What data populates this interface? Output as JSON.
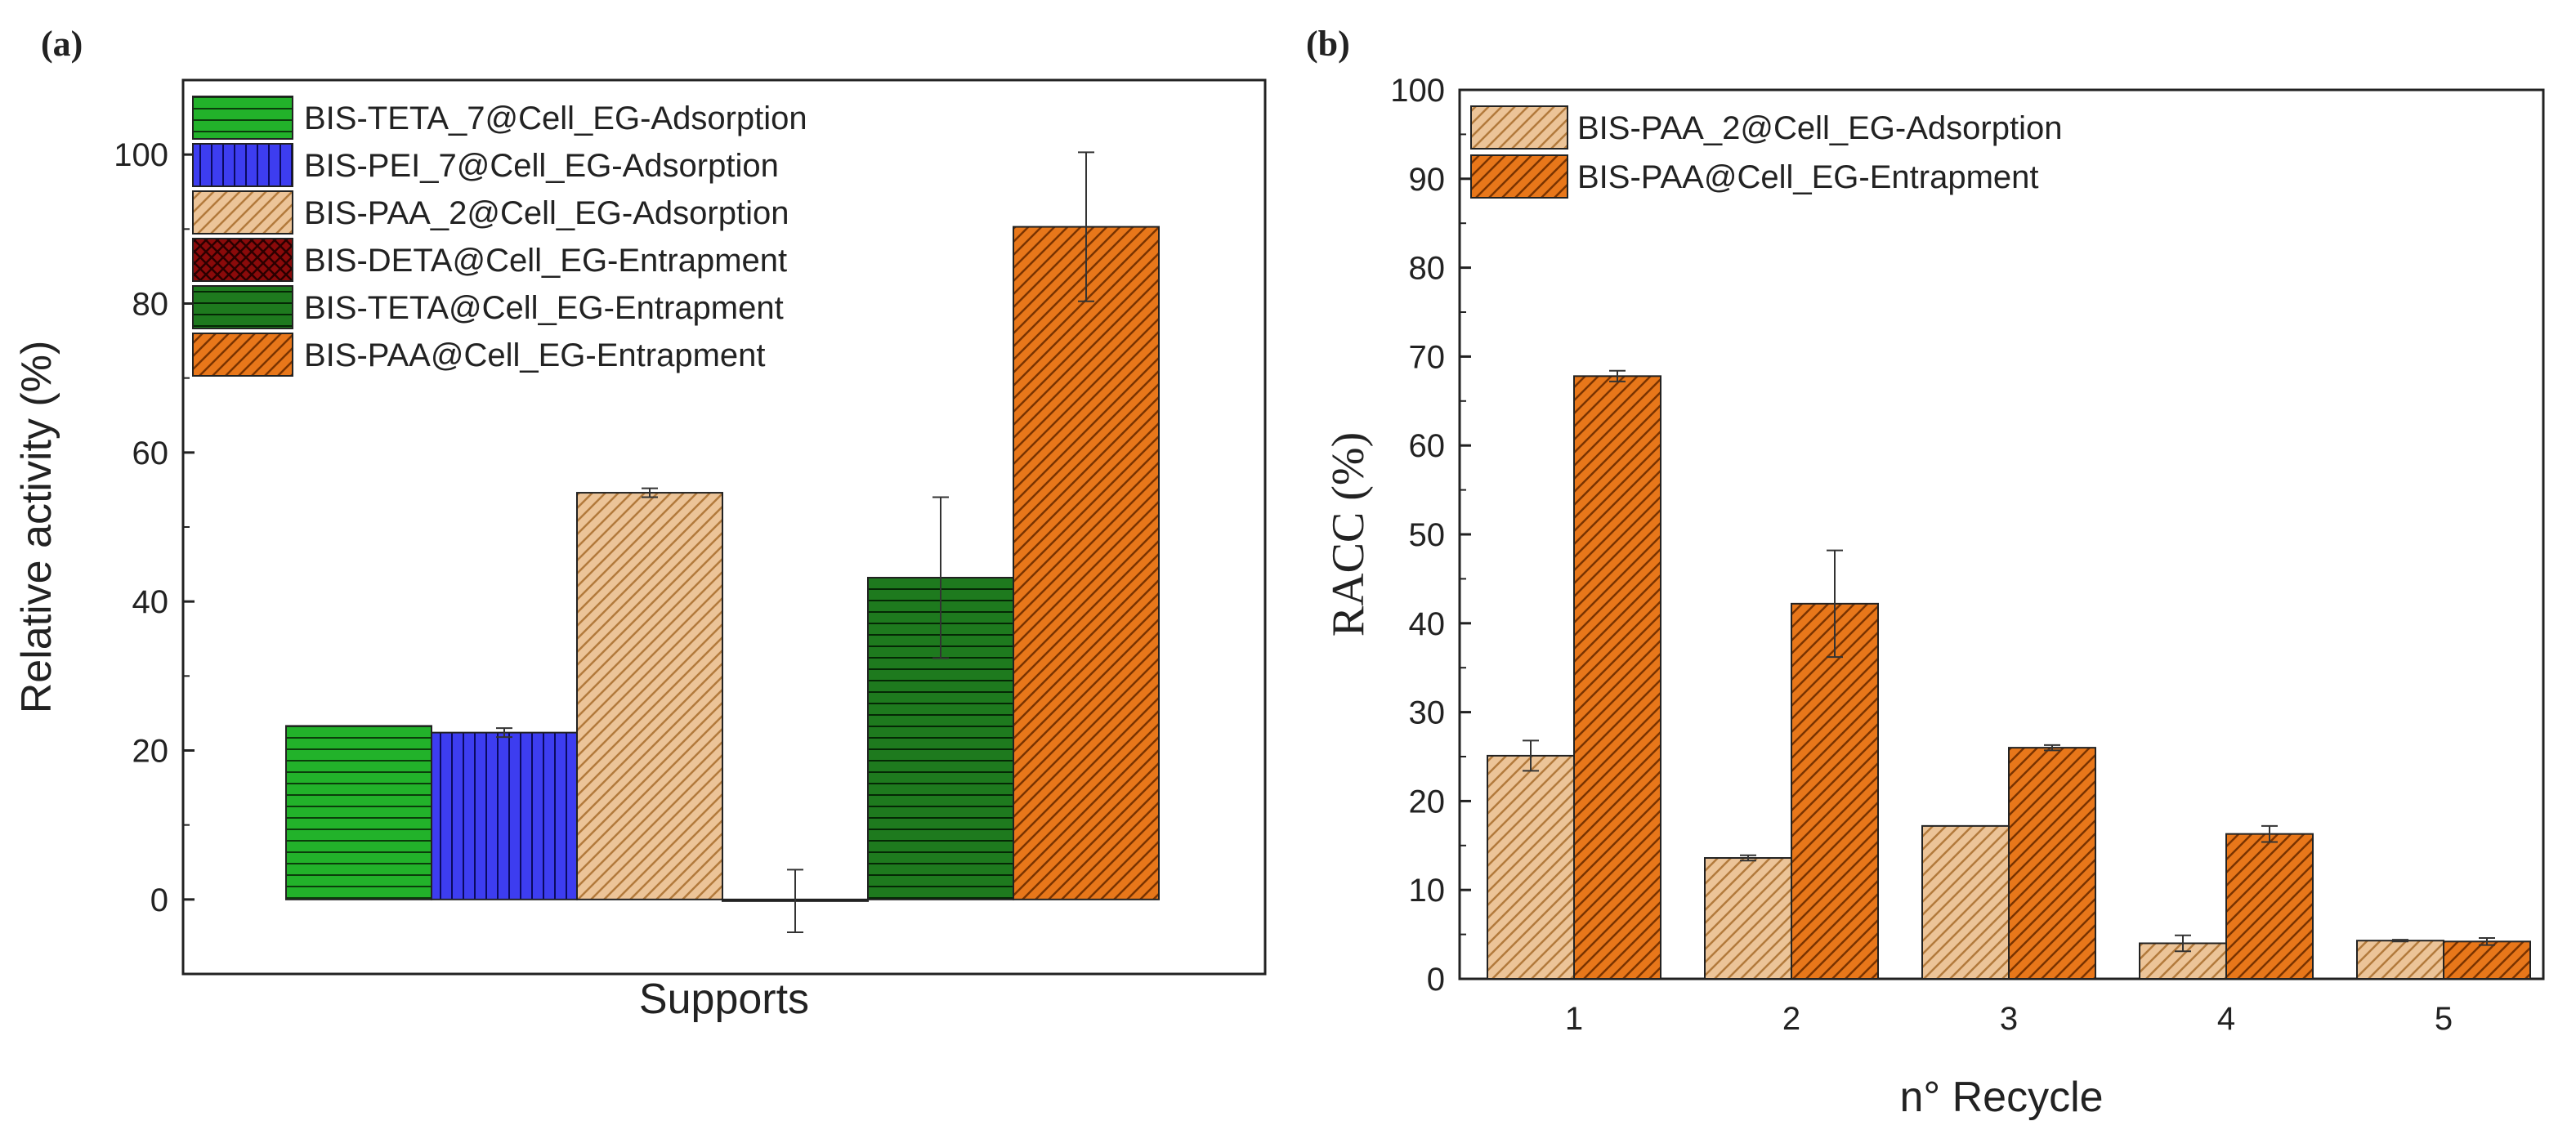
{
  "panels": {
    "a": {
      "label": "(a)"
    },
    "b": {
      "label": "(b)"
    }
  },
  "chart_data": [
    {
      "type": "bar",
      "panel": "(a)",
      "title": "",
      "xlabel": "Supports",
      "ylabel": "Relative activity (%)",
      "ylim": [
        -10,
        110
      ],
      "yticks": [
        0,
        20,
        40,
        60,
        80,
        100
      ],
      "ytick_labels": [
        "0",
        "20",
        "40",
        "60",
        "80",
        "100"
      ],
      "grid": false,
      "legend_position": "top-left",
      "series": [
        {
          "name": "BIS-TETA_7@Cell_EG-Adsorption",
          "value": 23.3,
          "error": 0,
          "color": "#22b22a",
          "pattern": "horizontal-lines"
        },
        {
          "name": "BIS-PEI_7@Cell_EG-Adsorption",
          "value": 22.4,
          "error": 0.6,
          "color": "#3d3df0",
          "pattern": "vertical-lines"
        },
        {
          "name": "BIS-PAA_2@Cell_EG-Adsorption",
          "value": 54.6,
          "error": 0.6,
          "color": "#e6b98a",
          "pattern": "diagonal-lines"
        },
        {
          "name": "BIS-DETA@Cell_EG-Entrapment",
          "value": -0.2,
          "error": 4.2,
          "color": "#8b0a0a",
          "pattern": "crosshatch"
        },
        {
          "name": "BIS-TETA@Cell_EG-Entrapment",
          "value": 43.2,
          "error": 10.8,
          "color": "#1e7a1e",
          "pattern": "horizontal-lines"
        },
        {
          "name": "BIS-PAA@Cell_EG-Entrapment",
          "value": 90.3,
          "error": 10.0,
          "color": "#e8771a",
          "pattern": "diagonal-lines"
        }
      ]
    },
    {
      "type": "bar",
      "panel": "(b)",
      "title": "",
      "xlabel": "n° Recycle",
      "ylabel": "RACC (%)",
      "ylim": [
        0,
        100
      ],
      "yticks": [
        0,
        10,
        20,
        30,
        40,
        50,
        60,
        70,
        80,
        90,
        100
      ],
      "ytick_labels": [
        "0",
        "10",
        "20",
        "30",
        "40",
        "50",
        "60",
        "70",
        "80",
        "90",
        "100"
      ],
      "categories": [
        "1",
        "2",
        "3",
        "4",
        "5"
      ],
      "grid": false,
      "legend_position": "top-left",
      "series": [
        {
          "name": "BIS-PAA_2@Cell_EG-Adsorption",
          "values": [
            25.1,
            13.6,
            17.2,
            4.0,
            4.3
          ],
          "errors": [
            1.7,
            0.3,
            0,
            0.9,
            0.1
          ],
          "color": "#e6b98a",
          "pattern": "diagonal-lines"
        },
        {
          "name": "BIS-PAA@Cell_EG-Entrapment",
          "values": [
            67.8,
            42.2,
            26.0,
            16.3,
            4.2
          ],
          "errors": [
            0.6,
            6.0,
            0.3,
            0.9,
            0.4
          ],
          "color": "#e8771a",
          "pattern": "diagonal-lines"
        }
      ]
    }
  ]
}
